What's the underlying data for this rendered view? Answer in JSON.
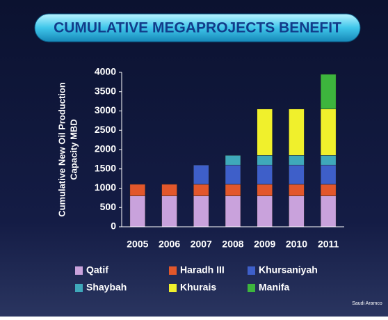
{
  "chart_data": {
    "type": "stacked_bar",
    "title": "CUMULATIVE MEGAPROJECTS BENEFIT",
    "ylabel": [
      "Cumulative New Oil Production",
      "Capacity MBD"
    ],
    "categories": [
      "2005",
      "2006",
      "2007",
      "2008",
      "2009",
      "2010",
      "2011"
    ],
    "series": [
      {
        "name": "Qatif",
        "color": "#c9a2dc",
        "values": [
          800,
          800,
          800,
          800,
          800,
          800,
          800
        ]
      },
      {
        "name": "Haradh III",
        "color": "#e2572b",
        "values": [
          300,
          300,
          300,
          300,
          300,
          300,
          300
        ]
      },
      {
        "name": "Khursaniyah",
        "color": "#3e5fc9",
        "values": [
          null,
          null,
          500,
          500,
          500,
          500,
          500
        ]
      },
      {
        "name": "Shaybah",
        "color": "#3fa8ba",
        "values": [
          null,
          null,
          null,
          250,
          250,
          250,
          250
        ]
      },
      {
        "name": "Khurais",
        "color": "#f0f02c",
        "values": [
          null,
          null,
          null,
          null,
          1200,
          1200,
          1200
        ]
      },
      {
        "name": "Manifa",
        "color": "#3db53d",
        "values": [
          null,
          null,
          null,
          null,
          null,
          null,
          900
        ]
      }
    ],
    "ylim": [
      0,
      4000
    ],
    "yticks": [
      0,
      500,
      1000,
      1500,
      2000,
      2500,
      3000,
      3500,
      4000
    ],
    "logo_text": "Saudi Aramco"
  }
}
